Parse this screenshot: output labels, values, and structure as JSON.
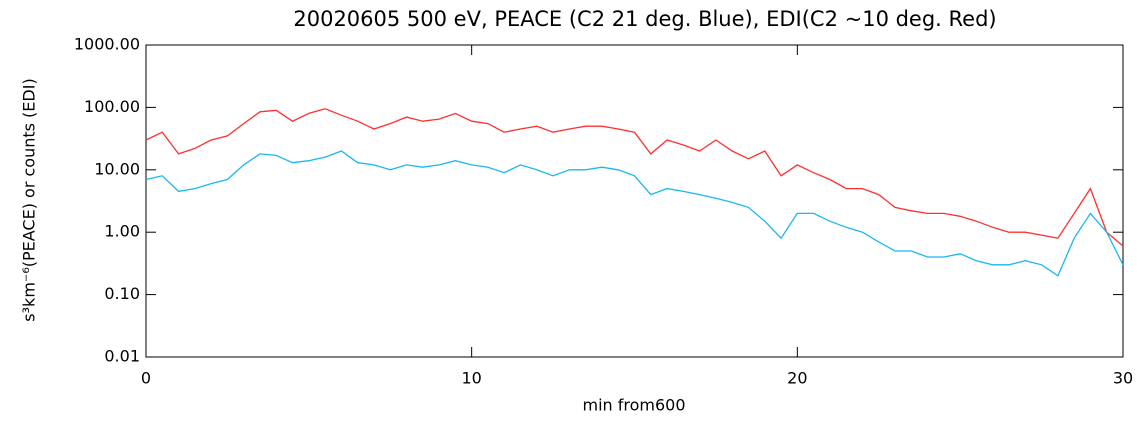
{
  "chart_data": {
    "type": "line",
    "title": "20020605 500 eV, PEACE (C2 21 deg. Blue), EDI(C2 ~10 deg. Red)",
    "xlabel": "min from600",
    "ylabel": "s³km⁻⁶(PEACE) or counts (EDI)",
    "x": [
      0,
      0.5,
      1,
      1.5,
      2,
      2.5,
      3,
      3.5,
      4,
      4.5,
      5,
      5.5,
      6,
      6.5,
      7,
      7.5,
      8,
      8.5,
      9,
      9.5,
      10,
      10.5,
      11,
      11.5,
      12,
      12.5,
      13,
      13.5,
      14,
      14.5,
      15,
      15.5,
      16,
      16.5,
      17,
      17.5,
      18,
      18.5,
      19,
      19.5,
      20,
      20.5,
      21,
      21.5,
      22,
      22.5,
      23,
      23.5,
      24,
      24.5,
      25,
      25.5,
      26,
      26.5,
      27,
      27.5,
      28,
      28.5,
      29,
      29.5,
      30
    ],
    "series": [
      {
        "name": "EDI",
        "color": "#ff3030",
        "values": [
          30,
          40,
          18,
          22,
          30,
          35,
          55,
          85,
          90,
          60,
          80,
          95,
          75,
          60,
          45,
          55,
          70,
          60,
          65,
          80,
          60,
          55,
          40,
          45,
          50,
          40,
          45,
          50,
          50,
          45,
          40,
          18,
          30,
          25,
          20,
          30,
          20,
          15,
          20,
          8,
          12,
          9,
          7,
          5,
          5,
          4,
          2.5,
          2.2,
          2,
          2,
          1.8,
          1.5,
          1.2,
          1,
          1,
          0.9,
          0.8,
          2,
          5,
          1,
          0.6
        ]
      },
      {
        "name": "PEACE",
        "color": "#1ab8f0",
        "values": [
          7,
          8,
          4.5,
          5,
          6,
          7,
          12,
          18,
          17,
          13,
          14,
          16,
          20,
          13,
          12,
          10,
          12,
          11,
          12,
          14,
          12,
          11,
          9,
          12,
          10,
          8,
          10,
          10,
          11,
          10,
          8,
          4,
          5,
          4.5,
          4,
          3.5,
          3,
          2.5,
          1.5,
          0.8,
          2,
          2,
          1.5,
          1.2,
          1,
          0.7,
          0.5,
          0.5,
          0.4,
          0.4,
          0.45,
          0.35,
          0.3,
          0.3,
          0.35,
          0.3,
          0.2,
          0.8,
          2,
          1,
          0.3
        ]
      }
    ],
    "xlim": [
      0,
      30
    ],
    "xticks": [
      0,
      10,
      20,
      30
    ],
    "ylim": [
      0.01,
      1000
    ],
    "log_y": true,
    "yticks": [
      {
        "value": 0.01,
        "label": "0.01"
      },
      {
        "value": 0.1,
        "label": "0.10"
      },
      {
        "value": 1,
        "label": "1.00"
      },
      {
        "value": 10,
        "label": "10.00"
      },
      {
        "value": 100,
        "label": "100.00"
      },
      {
        "value": 1000,
        "label": "1000.00"
      }
    ]
  }
}
